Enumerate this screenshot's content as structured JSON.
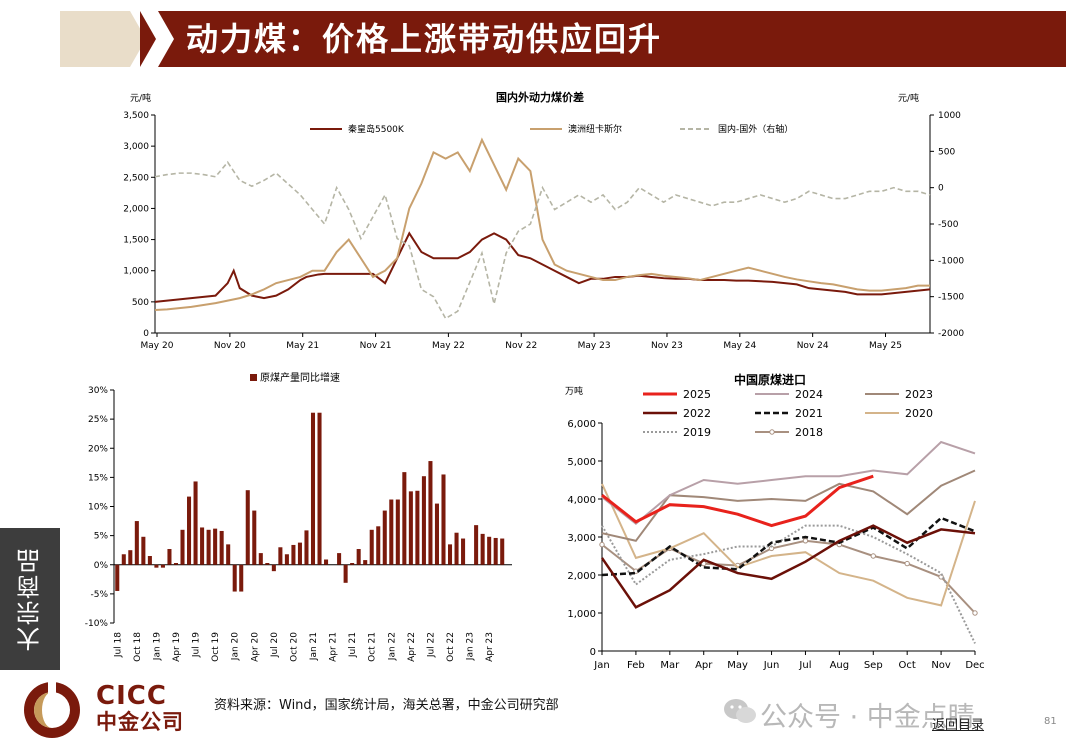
{
  "header": {
    "title": "动力煤：价格上涨带动供应回升"
  },
  "side_tab": {
    "label": "大宗商品"
  },
  "footer": {
    "source": "资料来源：Wind，国家统计局，海关总署，中金公司研究部",
    "back": "返回目录",
    "page": "81",
    "wechat": "公众号 · 中金点睛"
  },
  "logo": {
    "en": "CICC",
    "cn": "中金公司"
  },
  "colors": {
    "brand": "#7a1a0c",
    "tan": "#c8a06e",
    "dash": "#b5b5a5"
  },
  "chart_data": [
    {
      "type": "line",
      "title": "国内外动力煤价差",
      "ylabel_left": "元/吨",
      "ylabel_right": "元/吨",
      "ylim_left": [
        0,
        3500
      ],
      "ylim_right": [
        -2000,
        1000
      ],
      "yticks_left": [
        "0",
        "500",
        "1,000",
        "1,500",
        "2,000",
        "2,500",
        "3,000",
        "3,500"
      ],
      "yticks_right": [
        "-2000",
        "-1500",
        "-1000",
        "-500",
        "0",
        "500",
        "1000"
      ],
      "x_ticks": [
        "May 20",
        "Nov 20",
        "May 21",
        "Nov 21",
        "May 22",
        "Nov 22",
        "May 23",
        "Nov 23",
        "May 24",
        "Nov 24",
        "May 25"
      ],
      "legend": "top",
      "series": [
        {
          "name": "秦皇岛5500K",
          "axis": "left",
          "color": "#7a1a0c",
          "x": [
            0,
            1,
            2,
            3,
            4,
            5,
            6,
            6.5,
            7,
            8,
            9,
            10,
            11,
            12,
            12.5,
            13,
            13.5,
            14,
            15,
            16,
            17,
            18,
            19,
            20,
            21,
            22,
            23,
            24,
            25,
            26,
            27,
            28,
            29,
            30,
            31,
            32,
            33,
            34,
            35,
            36,
            37,
            38,
            39,
            40,
            41,
            42,
            43,
            44,
            45,
            46,
            47,
            48,
            49,
            50,
            51,
            52,
            53,
            54,
            55,
            56,
            57,
            58,
            59,
            60,
            61,
            62,
            63,
            64
          ],
          "values": [
            500,
            520,
            540,
            560,
            580,
            600,
            800,
            1000,
            720,
            600,
            560,
            600,
            700,
            850,
            900,
            920,
            940,
            950,
            950,
            950,
            950,
            950,
            800,
            1200,
            1600,
            1300,
            1200,
            1200,
            1200,
            1300,
            1500,
            1600,
            1500,
            1250,
            1200,
            1100,
            1000,
            900,
            800,
            870,
            870,
            900,
            900,
            920,
            900,
            880,
            870,
            870,
            850,
            850,
            850,
            840,
            840,
            830,
            820,
            800,
            780,
            720,
            700,
            680,
            660,
            620,
            620,
            620,
            640,
            660,
            680,
            700
          ]
        },
        {
          "name": "澳洲纽卡斯尔",
          "axis": "left",
          "color": "#c8a06e",
          "x": [
            0,
            1,
            2,
            3,
            4,
            5,
            6,
            7,
            8,
            9,
            10,
            11,
            12,
            13,
            14,
            15,
            16,
            17,
            18,
            19,
            20,
            21,
            22,
            23,
            24,
            25,
            26,
            27,
            28,
            29,
            30,
            31,
            32,
            33,
            34,
            35,
            36,
            37,
            38,
            39,
            40,
            41,
            42,
            43,
            44,
            45,
            46,
            47,
            48,
            49,
            50,
            51,
            52,
            53,
            54,
            55,
            56,
            57,
            58,
            59,
            60,
            61,
            62,
            63,
            64
          ],
          "values": [
            370,
            380,
            400,
            420,
            450,
            480,
            520,
            560,
            620,
            700,
            800,
            850,
            900,
            1000,
            1000,
            1300,
            1500,
            1200,
            900,
            1000,
            1200,
            2000,
            2400,
            2900,
            2800,
            2900,
            2600,
            3100,
            2700,
            2300,
            2800,
            2600,
            1500,
            1100,
            1000,
            950,
            900,
            850,
            850,
            900,
            930,
            950,
            920,
            900,
            880,
            850,
            900,
            950,
            1000,
            1050,
            1000,
            950,
            900,
            860,
            830,
            800,
            780,
            740,
            700,
            680,
            680,
            700,
            720,
            760,
            760
          ]
        },
        {
          "name": "国内-国外（右轴）",
          "axis": "right",
          "color": "#b5b5a5",
          "dashed": true,
          "x": [
            0,
            1,
            2,
            3,
            4,
            5,
            6,
            7,
            8,
            9,
            10,
            11,
            12,
            13,
            14,
            15,
            16,
            17,
            18,
            19,
            20,
            21,
            22,
            23,
            24,
            25,
            26,
            27,
            28,
            29,
            30,
            31,
            32,
            33,
            34,
            35,
            36,
            37,
            38,
            39,
            40,
            41,
            42,
            43,
            44,
            45,
            46,
            47,
            48,
            49,
            50,
            51,
            52,
            53,
            54,
            55,
            56,
            57,
            58,
            59,
            60,
            61,
            62,
            63,
            64
          ],
          "values": [
            150,
            180,
            200,
            200,
            180,
            150,
            350,
            100,
            20,
            100,
            200,
            50,
            -100,
            -300,
            -500,
            0,
            -300,
            -700,
            -400,
            -100,
            -700,
            -800,
            -1400,
            -1500,
            -1800,
            -1700,
            -1300,
            -900,
            -1600,
            -900,
            -600,
            -500,
            0,
            -300,
            -200,
            -100,
            -200,
            -100,
            -300,
            -200,
            0,
            -100,
            -200,
            -100,
            -150,
            -200,
            -250,
            -200,
            -200,
            -150,
            -100,
            -150,
            -200,
            -150,
            -50,
            -100,
            -150,
            -150,
            -100,
            -50,
            -50,
            0,
            -50,
            -50,
            -100
          ]
        }
      ]
    },
    {
      "type": "bar",
      "legend": "原煤产量同比增速",
      "ylim": [
        -10,
        30
      ],
      "yticks": [
        "-10%",
        "-5%",
        "0%",
        "5%",
        "10%",
        "15%",
        "20%",
        "25%",
        "30%"
      ],
      "categories": [
        "Jul 18",
        "Aug 18",
        "Sep 18",
        "Oct 18",
        "Nov 18",
        "Dec 18",
        "Jan 19",
        "Feb 19",
        "Mar 19",
        "Apr 19",
        "May 19",
        "Jun 19",
        "Jul 19",
        "Aug 19",
        "Sep 19",
        "Oct 19",
        "Nov 19",
        "Dec 19",
        "Jan 20",
        "Feb 20",
        "Mar 20",
        "Apr 20",
        "May 20",
        "Jun 20",
        "Jul 20",
        "Aug 20",
        "Sep 20",
        "Oct 20",
        "Nov 20",
        "Dec 20",
        "Jan 21",
        "Feb 21",
        "Mar 21",
        "Apr 21",
        "May 21",
        "Jun 21",
        "Jul 21",
        "Aug 21",
        "Sep 21",
        "Oct 21",
        "Nov 21",
        "Dec 21",
        "Jan 22",
        "Feb 22",
        "Mar 22",
        "Apr 22",
        "May 22",
        "Jun 22",
        "Jul 22",
        "Aug 22",
        "Sep 22",
        "Oct 22",
        "Nov 22",
        "Dec 22",
        "Jan 23",
        "Feb 23",
        "Mar 23",
        "Apr 23",
        "May 23",
        "Jun 23",
        "Jul 23"
      ],
      "tick_labels": [
        "Jul 18",
        "Oct 18",
        "Jan 19",
        "Apr 19",
        "Jul 19",
        "Oct 19",
        "Jan 20",
        "Apr 20",
        "Jul 20",
        "Oct 20",
        "Jan 21",
        "Apr 21",
        "Jul 21",
        "Oct 21",
        "Jan 22",
        "Apr 22",
        "Jul 22",
        "Oct 22",
        "Jan 23",
        "Apr 23"
      ],
      "values": [
        -4.5,
        1.8,
        2.5,
        7.5,
        4.8,
        1.5,
        -0.5,
        -0.5,
        2.7,
        0.3,
        6.0,
        11.7,
        14.3,
        6.4,
        6.0,
        6.2,
        5.8,
        3.5,
        -4.6,
        -4.6,
        12.8,
        9.3,
        2.0,
        0.3,
        -1.1,
        3.0,
        1.8,
        3.4,
        3.8,
        5.9,
        26.1,
        26.1,
        0.9,
        0.0,
        2.0,
        -3.1,
        0.3,
        2.7,
        0.8,
        6.0,
        6.6,
        9.3,
        11.2,
        11.2,
        15.9,
        12.6,
        12.7,
        15.2,
        17.8,
        10.5,
        15.5,
        3.5,
        5.5,
        4.5,
        0.0,
        6.8,
        5.3,
        4.8,
        4.6,
        4.5,
        0.0
      ]
    },
    {
      "type": "line",
      "title": "中国原煤进口",
      "ylabel": "万吨",
      "ylim": [
        0,
        6000
      ],
      "yticks": [
        "0",
        "1,000",
        "2,000",
        "3,000",
        "4,000",
        "5,000",
        "6,000"
      ],
      "categories": [
        "Jan",
        "Feb",
        "Mar",
        "Apr",
        "May",
        "Jun",
        "Jul",
        "Aug",
        "Sep",
        "Oct",
        "Nov",
        "Dec"
      ],
      "legend": "top",
      "series": [
        {
          "name": "2025",
          "color": "#e8221c",
          "width": 3,
          "values": [
            4100,
            3400,
            3850,
            3800,
            3600,
            3300,
            3550,
            4300,
            4600,
            null,
            null,
            null
          ]
        },
        {
          "name": "2024",
          "color": "#b8a0a8",
          "width": 2,
          "values": [
            4050,
            3350,
            4100,
            4500,
            4400,
            4500,
            4600,
            4600,
            4750,
            4650,
            5500,
            5200
          ]
        },
        {
          "name": "2023",
          "color": "#a08878",
          "width": 2,
          "values": [
            3100,
            2900,
            4100,
            4050,
            3950,
            4000,
            3950,
            4400,
            4200,
            3600,
            4350,
            4750
          ]
        },
        {
          "name": "2022",
          "color": "#6b1008",
          "width": 2.5,
          "values": [
            2450,
            1150,
            1600,
            2400,
            2050,
            1900,
            2350,
            2900,
            3300,
            2850,
            3200,
            3100
          ]
        },
        {
          "name": "2021",
          "color": "#111111",
          "width": 2.5,
          "dashed": true,
          "values": [
            2000,
            2050,
            2750,
            2200,
            2150,
            2850,
            3000,
            2850,
            3250,
            2700,
            3500,
            3150
          ]
        },
        {
          "name": "2020",
          "color": "#d4b48a",
          "width": 2,
          "values": [
            4400,
            2450,
            2700,
            3100,
            2200,
            2500,
            2600,
            2050,
            1850,
            1400,
            1200,
            3950
          ]
        },
        {
          "name": "2019",
          "color": "#9a9a9a",
          "width": 2,
          "dotted": true,
          "values": [
            3300,
            1750,
            2400,
            2550,
            2750,
            2750,
            3300,
            3300,
            3000,
            2550,
            2050,
            200
          ]
        },
        {
          "name": "2018",
          "color": "#a89080",
          "width": 2,
          "marker": true,
          "values": [
            2800,
            2100,
            2700,
            2300,
            2250,
            2700,
            2900,
            2800,
            2500,
            2300,
            1950,
            1000
          ]
        }
      ]
    }
  ]
}
